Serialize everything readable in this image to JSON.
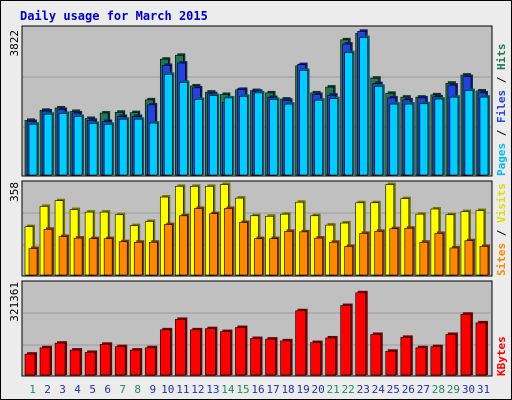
{
  "chart_data": [
    {
      "type": "bar",
      "title": "Daily usage for March 2015",
      "panel": "pages-files-hits",
      "ymax_label": "3822",
      "ylim": [
        0,
        3822
      ],
      "legend": [
        {
          "label": "Pages",
          "color": "#00ccff"
        },
        {
          "label": "Files",
          "color": "#2244dd"
        },
        {
          "label": "Hits",
          "color": "#227755"
        }
      ],
      "categories": [
        "1",
        "2",
        "3",
        "4",
        "5",
        "6",
        "7",
        "8",
        "9",
        "10",
        "11",
        "12",
        "13",
        "14",
        "15",
        "16",
        "17",
        "18",
        "19",
        "20",
        "21",
        "22",
        "23",
        "24",
        "25",
        "26",
        "27",
        "28",
        "29",
        "30",
        "31"
      ],
      "weekend_color": "#228866",
      "weekday_color": "#2233aa",
      "weekend_days": [
        "1",
        "7",
        "8",
        "14",
        "15",
        "21",
        "22",
        "28",
        "29"
      ],
      "series": [
        {
          "name": "Hits",
          "color": "#227755",
          "values": [
            1410,
            1670,
            1730,
            1640,
            1460,
            1600,
            1620,
            1610,
            1940,
            2990,
            3090,
            2300,
            2140,
            2080,
            2200,
            2180,
            2120,
            1960,
            2820,
            2120,
            2270,
            3490,
            3660,
            2500,
            2110,
            2010,
            2010,
            2070,
            2370,
            2580,
            2170
          ]
        },
        {
          "name": "Files",
          "color": "#2244dd",
          "values": [
            1380,
            1650,
            1690,
            1600,
            1410,
            1380,
            1510,
            1510,
            1810,
            2830,
            2890,
            2250,
            2100,
            1870,
            2210,
            2160,
            2000,
            1930,
            2850,
            2080,
            2060,
            3380,
            3710,
            2360,
            1990,
            1940,
            1990,
            2020,
            2320,
            2540,
            2120
          ]
        },
        {
          "name": "Pages",
          "color": "#00ccff",
          "values": [
            1310,
            1570,
            1590,
            1510,
            1330,
            1310,
            1440,
            1440,
            1340,
            2600,
            2390,
            1950,
            2050,
            1990,
            2030,
            2120,
            1950,
            1830,
            2700,
            1930,
            1970,
            3160,
            3550,
            2290,
            1830,
            1830,
            1840,
            1960,
            2010,
            2180,
            2010
          ]
        }
      ]
    },
    {
      "type": "bar",
      "panel": "sites-visits",
      "ymax_label": "358",
      "ylim": [
        0,
        358
      ],
      "legend": [
        {
          "label": "Sites",
          "color": "#ff8800"
        },
        {
          "label": "Visits",
          "color": "#ffff00"
        }
      ],
      "series": [
        {
          "name": "Visits",
          "color": "#ffff00",
          "values": [
            186,
            264,
            286,
            252,
            242,
            242,
            232,
            190,
            206,
            300,
            341,
            341,
            341,
            348,
            296,
            228,
            226,
            234,
            280,
            228,
            192,
            200,
            278,
            278,
            348,
            294,
            234,
            254,
            232,
            244,
            248
          ]
        },
        {
          "name": "Sites",
          "color": "#ff8800",
          "values": [
            102,
            176,
            148,
            142,
            140,
            140,
            128,
            126,
            126,
            194,
            228,
            256,
            236,
            256,
            202,
            140,
            140,
            168,
            166,
            142,
            126,
            110,
            160,
            168,
            178,
            180,
            126,
            160,
            104,
            132,
            110
          ]
        }
      ]
    },
    {
      "type": "bar",
      "panel": "kbytes",
      "ymax_label": "321361",
      "ylim": [
        0,
        321361
      ],
      "legend": [
        {
          "label": "KBytes",
          "color": "#ff0000"
        }
      ],
      "series": [
        {
          "name": "KBytes",
          "color": "#ff0000",
          "values": [
            72000,
            94000,
            110000,
            86000,
            78000,
            106000,
            98000,
            86000,
            94000,
            156000,
            192000,
            156000,
            160000,
            150000,
            164000,
            126000,
            124000,
            118000,
            222000,
            112000,
            128000,
            240000,
            284000,
            140000,
            82000,
            130000,
            94000,
            98000,
            140000,
            210000,
            180000
          ]
        }
      ]
    }
  ]
}
